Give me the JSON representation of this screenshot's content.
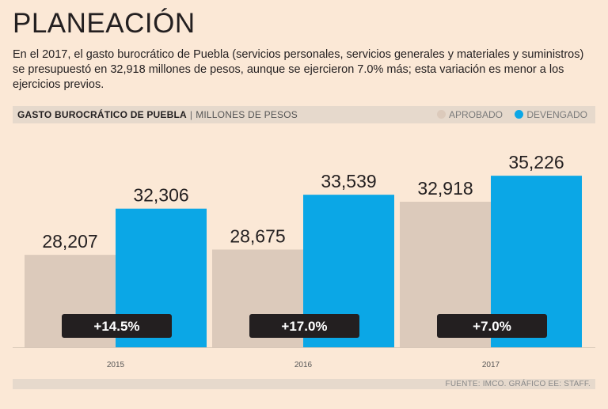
{
  "title": "PLANEACIÓN",
  "intro": "En el 2017, el gasto burocrático de Puebla (servicios personales, servicios generales y materiales y suministros) se presupuestó en 32,918 millones de pesos, aunque se ejercieron 7.0% más; esta variación es menor a los ejercicios previos.",
  "header": {
    "main": "GASTO BUROCRÁTICO DE PUEBLA",
    "separator": "|",
    "sub": "MILLONES DE PESOS"
  },
  "legend": {
    "approved": "APROBADO",
    "accrued": "DEVENGADO"
  },
  "colors": {
    "approved": "#dccabb",
    "accrued": "#0ba7e6",
    "badge": "#231f20"
  },
  "chart_data": {
    "type": "bar",
    "title": "GASTO BUROCRÁTICO DE PUEBLA",
    "ylabel": "MILLONES DE PESOS",
    "categories": [
      "2015",
      "2016",
      "2017"
    ],
    "series": [
      {
        "name": "APROBADO",
        "values": [
          28207,
          28675,
          32918
        ],
        "labels": [
          "28,207",
          "28,675",
          "32,918"
        ]
      },
      {
        "name": "DEVENGADO",
        "values": [
          32306,
          33539,
          35226
        ],
        "labels": [
          "32,306",
          "33,539",
          "35,226"
        ]
      }
    ],
    "variations": [
      "+14.5%",
      "+17.0%",
      "+7.0%"
    ],
    "ylim": [
      20000,
      36500
    ],
    "grid": false,
    "legend_position": "top-right"
  },
  "footer": {
    "source": "FUENTE: IMCO. GRÁFICO EE: STAFF."
  }
}
